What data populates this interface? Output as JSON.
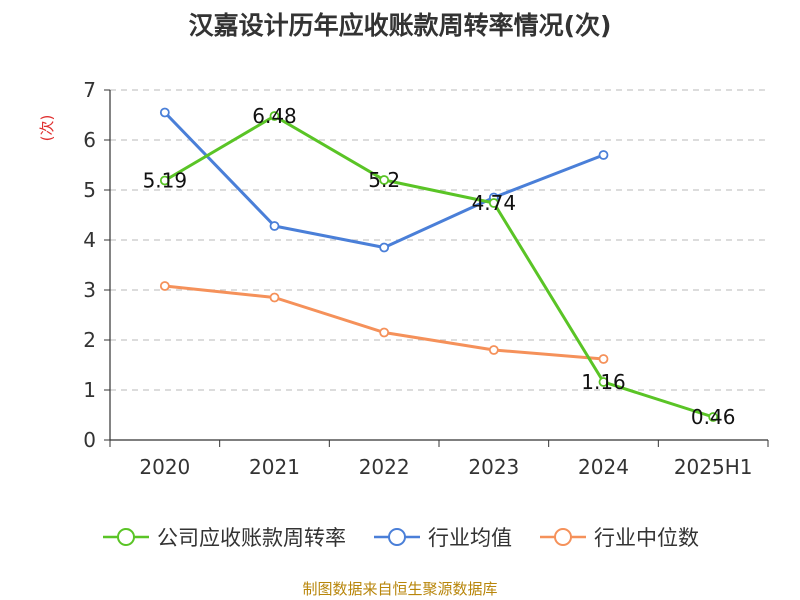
{
  "chart_data": {
    "type": "line",
    "title": "汉嘉设计历年应收账款周转率情况(次)",
    "ylabel": "(次)",
    "xlabel": "",
    "categories": [
      "2020",
      "2021",
      "2022",
      "2023",
      "2024",
      "2025H1"
    ],
    "ylim": [
      0,
      7
    ],
    "yticks": [
      0,
      1,
      2,
      3,
      4,
      5,
      6,
      7
    ],
    "grid": true,
    "legend_position": "bottom",
    "series": [
      {
        "name": "公司应收账款周转率",
        "color": "#5ac426",
        "values": [
          5.19,
          6.48,
          5.2,
          4.74,
          1.16,
          0.46
        ],
        "labels": [
          "5.19",
          "6.48",
          "5.2",
          "4.74",
          "1.16",
          "0.46"
        ]
      },
      {
        "name": "行业均值",
        "color": "#4a7fd8",
        "values": [
          6.55,
          4.28,
          3.85,
          4.85,
          5.7,
          null
        ]
      },
      {
        "name": "行业中位数",
        "color": "#f5915a",
        "values": [
          3.08,
          2.85,
          2.15,
          1.8,
          1.62,
          null
        ]
      }
    ]
  },
  "source_text": "制图数据来自恒生聚源数据库"
}
